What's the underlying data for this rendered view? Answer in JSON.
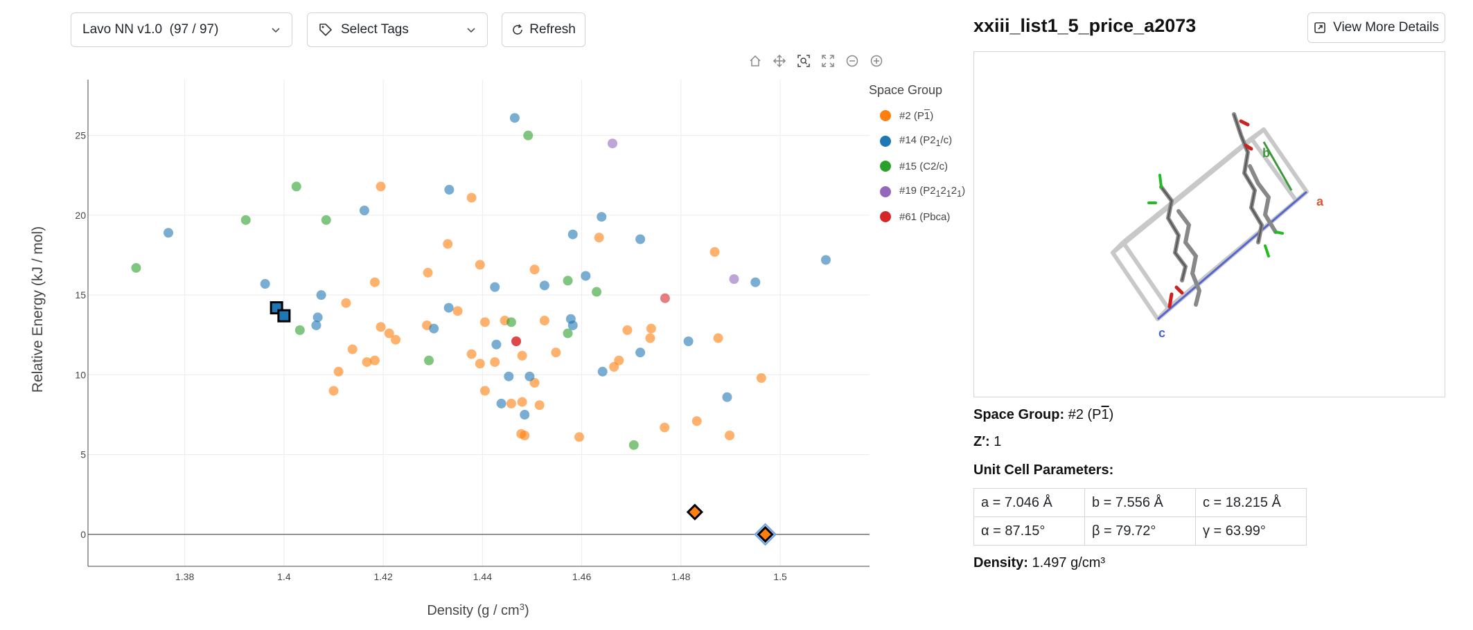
{
  "toolbar": {
    "model_select": "Lavo NN v1.0  (97 / 97)",
    "tags_select": "Select Tags",
    "refresh_label": "Refresh"
  },
  "legend": {
    "title": "Space Group",
    "items": [
      {
        "label_pre": "#2 (P",
        "label_over": "1",
        "label_post": ")",
        "color": "#ff7f0e"
      },
      {
        "label_pre": "#14 (P2",
        "label_sub1": "1",
        "label_post": "/c)",
        "color": "#1f77b4"
      },
      {
        "label_pre": "#15 (C2/c)",
        "color": "#2ca02c"
      },
      {
        "label_pre": "#19 (P2",
        "label_sub1": "1",
        "label_mid": "2",
        "label_sub2": "1",
        "label_mid2": "2",
        "label_sub3": "1",
        "label_post": ")",
        "color": "#9467bd"
      },
      {
        "label_pre": "#61 (Pbca)",
        "color": "#d62728"
      }
    ]
  },
  "chart_data": {
    "type": "scatter",
    "xlabel": "Density (g / cm",
    "xlabel_sup": "3",
    "xlabel_end": ")",
    "ylabel": "Relative Energy (kJ / mol)",
    "xlim": [
      1.3605,
      1.518
    ],
    "ylim": [
      -2,
      28.5
    ],
    "xticks": [
      1.38,
      1.4,
      1.42,
      1.44,
      1.46,
      1.48,
      1.5
    ],
    "yticks": [
      0,
      5,
      10,
      15,
      20,
      25
    ],
    "series": [
      {
        "name": "#2 (P-1)",
        "color": "#ff7f0e",
        "points": [
          [
            1.4195,
            21.8
          ],
          [
            1.4378,
            21.1
          ],
          [
            1.433,
            18.2
          ],
          [
            1.4395,
            16.9
          ],
          [
            1.4505,
            16.6
          ],
          [
            1.429,
            16.4
          ],
          [
            1.4183,
            15.8
          ],
          [
            1.4125,
            14.5
          ],
          [
            1.435,
            14.0
          ],
          [
            1.4445,
            13.4
          ],
          [
            1.4405,
            13.3
          ],
          [
            1.4525,
            13.4
          ],
          [
            1.4635,
            18.6
          ],
          [
            1.4195,
            13.0
          ],
          [
            1.4212,
            12.6
          ],
          [
            1.4225,
            12.2
          ],
          [
            1.4288,
            13.1
          ],
          [
            1.4138,
            11.6
          ],
          [
            1.4167,
            10.8
          ],
          [
            1.4183,
            10.9
          ],
          [
            1.411,
            10.2
          ],
          [
            1.4378,
            11.3
          ],
          [
            1.4395,
            10.7
          ],
          [
            1.4425,
            10.8
          ],
          [
            1.448,
            11.2
          ],
          [
            1.4548,
            11.4
          ],
          [
            1.4405,
            9.0
          ],
          [
            1.4505,
            9.5
          ],
          [
            1.41,
            9.0
          ],
          [
            1.4458,
            8.2
          ],
          [
            1.448,
            8.3
          ],
          [
            1.4515,
            8.1
          ],
          [
            1.4478,
            6.3
          ],
          [
            1.4485,
            6.2
          ],
          [
            1.4595,
            6.1
          ],
          [
            1.4692,
            12.8
          ],
          [
            1.474,
            12.9
          ],
          [
            1.4738,
            12.3
          ],
          [
            1.4675,
            10.9
          ],
          [
            1.4665,
            10.5
          ],
          [
            1.4767,
            6.7
          ],
          [
            1.4832,
            7.1
          ],
          [
            1.4898,
            6.2
          ],
          [
            1.4875,
            12.3
          ],
          [
            1.4868,
            17.7
          ],
          [
            1.4962,
            9.8
          ]
        ]
      },
      {
        "name": "#14 (P21/c)",
        "color": "#1f77b4",
        "points": [
          [
            1.3767,
            18.9
          ],
          [
            1.3962,
            15.7
          ],
          [
            1.4075,
            15.0
          ],
          [
            1.4068,
            13.6
          ],
          [
            1.4065,
            13.1
          ],
          [
            1.4162,
            20.3
          ],
          [
            1.4333,
            21.6
          ],
          [
            1.4465,
            26.1
          ],
          [
            1.4302,
            12.9
          ],
          [
            1.4332,
            14.2
          ],
          [
            1.4425,
            15.5
          ],
          [
            1.4428,
            11.9
          ],
          [
            1.4453,
            9.9
          ],
          [
            1.4495,
            9.9
          ],
          [
            1.4438,
            8.2
          ],
          [
            1.4485,
            7.5
          ],
          [
            1.4525,
            15.6
          ],
          [
            1.4582,
            18.8
          ],
          [
            1.4608,
            16.2
          ],
          [
            1.464,
            19.9
          ],
          [
            1.4578,
            13.5
          ],
          [
            1.4582,
            13.1
          ],
          [
            1.4642,
            10.2
          ],
          [
            1.4718,
            18.5
          ],
          [
            1.4718,
            11.4
          ],
          [
            1.4815,
            12.1
          ],
          [
            1.4893,
            8.6
          ],
          [
            1.495,
            15.8
          ],
          [
            1.5092,
            17.2
          ]
        ]
      },
      {
        "name": "#15 (C2/c)",
        "color": "#2ca02c",
        "points": [
          [
            1.3702,
            16.7
          ],
          [
            1.3923,
            19.7
          ],
          [
            1.4025,
            21.8
          ],
          [
            1.4085,
            19.7
          ],
          [
            1.4032,
            12.8
          ],
          [
            1.4292,
            10.9
          ],
          [
            1.4492,
            25.0
          ],
          [
            1.4458,
            13.3
          ],
          [
            1.4572,
            15.9
          ],
          [
            1.4572,
            12.6
          ],
          [
            1.463,
            15.2
          ],
          [
            1.4705,
            5.6
          ]
        ]
      },
      {
        "name": "#19 (P212121)",
        "color": "#9467bd",
        "points": [
          [
            1.4662,
            24.5
          ],
          [
            1.4907,
            16.0
          ]
        ]
      },
      {
        "name": "#61 (Pbca)",
        "color": "#d62728",
        "points": [
          [
            1.4468,
            12.1
          ],
          [
            1.4468,
            12.1
          ],
          [
            1.4768,
            14.8
          ]
        ]
      }
    ],
    "highlighted_squares": [
      [
        1.3985,
        14.2
      ],
      [
        1.4,
        13.7
      ]
    ],
    "highlighted_diamonds": [
      [
        1.4828,
        1.4
      ],
      [
        1.497,
        0
      ]
    ]
  },
  "structure": {
    "title": "xxiii_list1_5_price_a2073",
    "details_label": "View More Details",
    "axis_a": "a",
    "axis_b": "b",
    "axis_c": "c",
    "space_group_label": "Space Group:",
    "space_group_value_pre": "#2 (P",
    "space_group_value_over": "1",
    "space_group_value_post": ")",
    "z_label": "Z′:",
    "z_value": "1",
    "unit_cell_label": "Unit Cell Parameters:",
    "cell": [
      [
        "a = 7.046 Å",
        "b = 7.556 Å",
        "c = 18.215 Å"
      ],
      [
        "α = 87.15°",
        "β = 79.72°",
        "γ = 63.99°"
      ]
    ],
    "density_label": "Density:",
    "density_value": "1.497 g/cm³"
  }
}
